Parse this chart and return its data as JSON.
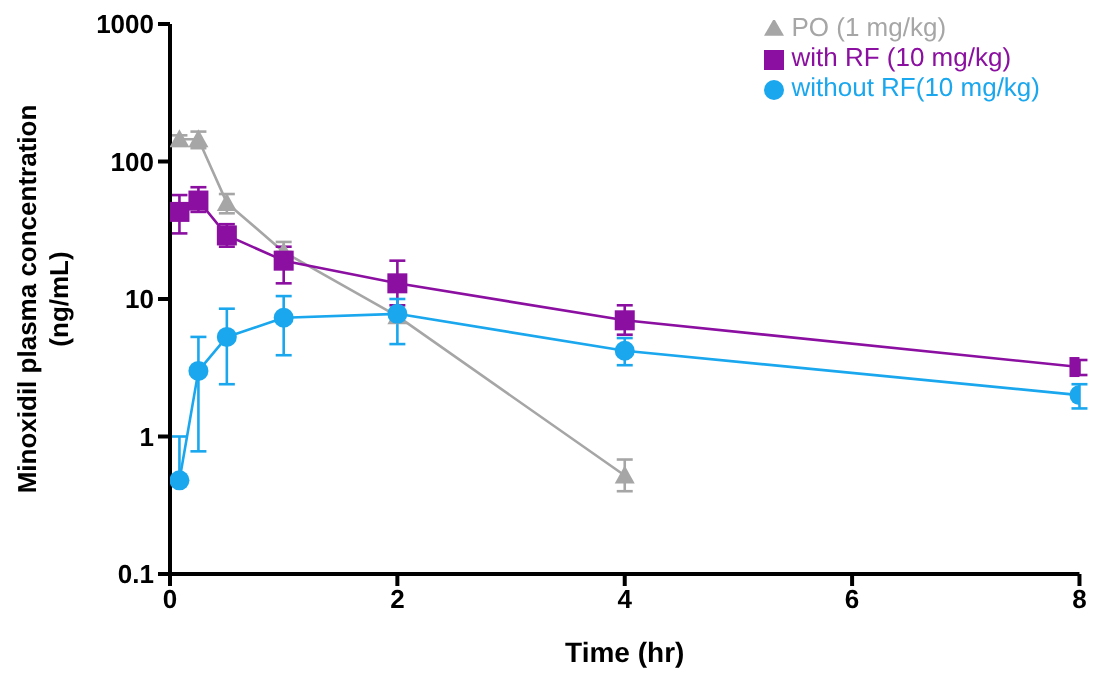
{
  "chart_data": {
    "type": "line",
    "xlabel": "Time (hr)",
    "ylabel": "Minoxidil plasma concentration\n(ng/mL)",
    "log": "y",
    "xlim": [
      0,
      8
    ],
    "xticks": [
      0,
      2,
      4,
      6,
      8
    ],
    "ylim": [
      0.1,
      1000
    ],
    "yticks": [
      0.1,
      1,
      10,
      100,
      1000
    ],
    "grid": false,
    "legend": "top right",
    "series": [
      {
        "name": "PO (1 mg/kg)",
        "color": "#a6a6a6",
        "marker": "triangle",
        "x": [
          0.083,
          0.25,
          0.5,
          1,
          2,
          4
        ],
        "values": [
          145,
          145,
          50,
          22,
          7.5,
          0.52
        ],
        "errors": [
          [
            130,
            155
          ],
          [
            125,
            165
          ],
          [
            42,
            58
          ],
          [
            22,
            26
          ],
          null,
          [
            0.4,
            0.68
          ]
        ]
      },
      {
        "name": "with RF (10 mg/kg)",
        "color": "#8b0fa0",
        "marker": "square",
        "x": [
          0.083,
          0.25,
          0.5,
          1,
          2,
          4,
          8
        ],
        "values": [
          43,
          52,
          29,
          19,
          13,
          7,
          3.2
        ],
        "errors": [
          [
            30,
            57
          ],
          [
            43,
            65
          ],
          [
            24,
            35
          ],
          [
            13,
            24
          ],
          [
            9,
            19
          ],
          [
            5.5,
            9
          ],
          [
            2.8,
            3.6
          ]
        ]
      },
      {
        "name": "without RF(10 mg/kg)",
        "color": "#1aa7ee",
        "marker": "circle",
        "x": [
          0.083,
          0.25,
          0.5,
          1,
          2,
          4,
          8
        ],
        "values": [
          0.48,
          3,
          5.3,
          7.3,
          7.8,
          4.2,
          2
        ],
        "errors": [
          [
            0.48,
            1
          ],
          [
            0.78,
            5.3
          ],
          [
            2.4,
            8.5
          ],
          [
            3.9,
            10.5
          ],
          [
            4.7,
            10
          ],
          [
            3.3,
            5.2
          ],
          [
            1.6,
            2.4
          ]
        ]
      }
    ]
  }
}
